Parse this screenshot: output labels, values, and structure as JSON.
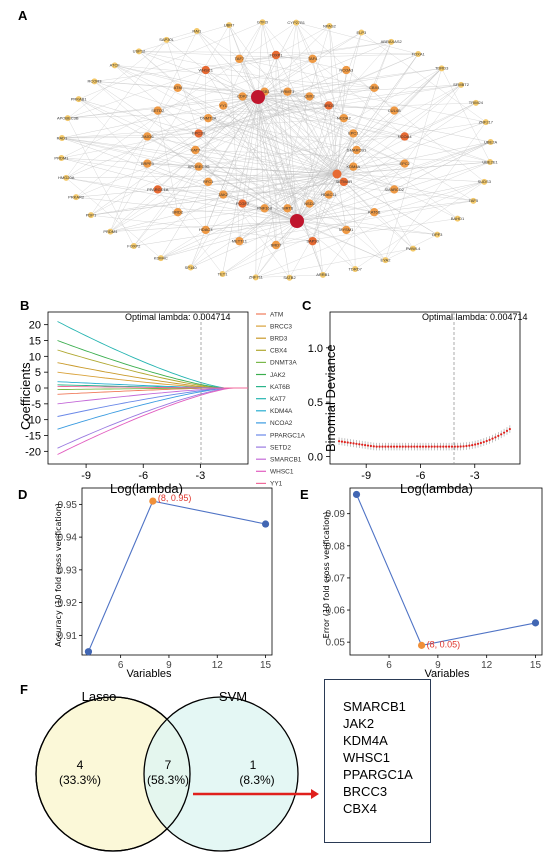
{
  "panels": {
    "A": "A",
    "B": "B",
    "C": "C",
    "D": "D",
    "E": "E",
    "F": "F"
  },
  "network": {
    "outer_nodes": [
      "UBR7",
      "GTF2I",
      "CYP27B1",
      "NPAS2",
      "ELP3",
      "ABRAXAS2",
      "FOXA1",
      "TDRD3",
      "SFMBT2",
      "TRIM24",
      "ZNF217",
      "UBE2A",
      "UBE2E1",
      "SUDS3",
      "TAF5",
      "BAHD1",
      "DPF3",
      "PWWL4",
      "EYA2",
      "TDRD7",
      "ARRB1",
      "SATB2",
      "ZNF711",
      "TET1",
      "SP140",
      "KDM4C",
      "FOXP2",
      "PRDM4",
      "PDP1",
      "PRKAR2",
      "HMG20A",
      "PRDM1",
      "RAD1",
      "APOBEC3B",
      "PRKAB1",
      "RCOR3",
      "ATCF",
      "USP12",
      "SAP30L",
      "RAI1"
    ],
    "inner_nodes": [
      "FOXP1",
      "PRMT3",
      "TAF4",
      "CBX3",
      "NCOA3",
      "BRD3",
      "CBX4",
      "NCOA2",
      "CUL4B",
      "EPC1",
      "NCOA4",
      "SMARCB1",
      "EPC2",
      "KDM4A",
      "SMARCD2",
      "SETMAR",
      "KAT6B",
      "HDAC11",
      "MYSM1",
      "NSD2",
      "SAP30",
      "SIRT6",
      "BRD7",
      "RNF168",
      "METTL1",
      "PCGF2",
      "HDAC3",
      "JAK2",
      "BRD2",
      "RFC1",
      "PPARGC1A",
      "APOBEC3G",
      "BRPF3",
      "KAT7",
      "JMJD6",
      "EPC2B",
      "SETD2",
      "DNMT3A",
      "ATM",
      "YY1",
      "WHSC1",
      "CDK2",
      "TAF7",
      "USB1"
    ],
    "colors": {
      "edge": "#bfbfbf",
      "outer": "#f4c96a",
      "inner": "#ef9a45",
      "inner_dark": "#e76a32",
      "hub": "#c0152d"
    }
  },
  "lasso_coef": {
    "xlabel": "Log(lambda)",
    "ylabel": "Coefficients",
    "annotation": "Optimal lambda: 0.004714",
    "xticks": [
      "-9",
      "-6",
      "-3"
    ],
    "yticks": [
      "20",
      "15",
      "10",
      "5",
      "0",
      "-5",
      "-10",
      "-15",
      "-20"
    ],
    "legend": [
      "ATM",
      "BRCC3",
      "BRD3",
      "CBX4",
      "DNMT3A",
      "JAK2",
      "KAT6B",
      "KAT7",
      "KDM4A",
      "NCOA2",
      "PPARGC1A",
      "SETD2",
      "SMARCB1",
      "WHSC1",
      "YY1"
    ],
    "legend_colors": [
      "#f07a5a",
      "#d9a23a",
      "#c99a2a",
      "#b0a830",
      "#7ab84a",
      "#3aae4e",
      "#2ab48a",
      "#24b4b0",
      "#28aed0",
      "#3a9be0",
      "#6a88e8",
      "#9a7ae0",
      "#c46ad8",
      "#e25ec0",
      "#f06a9a"
    ]
  },
  "deviance": {
    "xlabel": "Log(lambda)",
    "ylabel": "Binomial Deviance",
    "annotation": "Optimal lambda: 0.004714",
    "xticks": [
      "-9",
      "-6",
      "-3"
    ],
    "yticks": [
      "1.0",
      "0.5",
      "0.0"
    ]
  },
  "chart_data": [
    {
      "type": "line",
      "title": "",
      "xlabel": "Variables",
      "ylabel": "Accuracy (10 fold cross verification)",
      "x": [
        4,
        8,
        15
      ],
      "y": [
        0.905,
        0.951,
        0.944
      ],
      "xlim": [
        3.6,
        15.4
      ],
      "ylim": [
        0.904,
        0.955
      ],
      "xticks": [
        "6",
        "9",
        "12",
        "15"
      ],
      "yticks": [
        "0.95",
        "0.94",
        "0.93",
        "0.92",
        "0.91"
      ],
      "annotation": "(8, 0.95)",
      "colors": {
        "line": "#4f73c5",
        "point": "#4166b3",
        "highlight": "#f0903a",
        "annotation": "#e0362c"
      }
    },
    {
      "type": "line",
      "title": "",
      "xlabel": "Variables",
      "ylabel": "Error (10 fold cross verification)",
      "x": [
        4,
        8,
        15
      ],
      "y": [
        0.096,
        0.049,
        0.056
      ],
      "xlim": [
        3.6,
        15.4
      ],
      "ylim": [
        0.046,
        0.098
      ],
      "xticks": [
        "6",
        "9",
        "12",
        "15"
      ],
      "yticks": [
        "0.09",
        "0.08",
        "0.07",
        "0.06",
        "0.05"
      ],
      "annotation": "(8, 0.05)",
      "colors": {
        "line": "#4f73c5",
        "point": "#4166b3",
        "highlight": "#f0903a",
        "annotation": "#e0362c"
      }
    }
  ],
  "venn": {
    "left_label": "Lasso",
    "right_label": "SVM",
    "left_count": "4",
    "left_pct": "(33.3%)",
    "mid_count": "7",
    "mid_pct": "(58.3%)",
    "right_count": "1",
    "right_pct": "(8.3%)",
    "colors": {
      "left": "#fbf8d8",
      "right": "#dff6f2",
      "arrow": "#e0201c"
    },
    "genes": [
      "SMARCB1",
      "JAK2",
      "KDM4A",
      "WHSC1",
      "PPARGC1A",
      "BRCC3",
      "CBX4"
    ]
  }
}
